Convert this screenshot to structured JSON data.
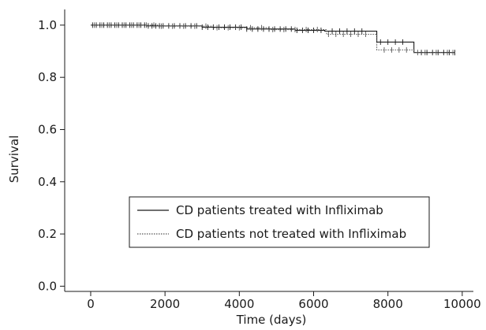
{
  "chart_data": {
    "type": "line",
    "title": "",
    "xlabel": "Time (days)",
    "ylabel": "Survival",
    "xlim": [
      -700,
      10300
    ],
    "ylim": [
      -0.02,
      1.06
    ],
    "x_ticks": [
      0,
      2000,
      4000,
      6000,
      8000,
      10000
    ],
    "y_ticks": [
      0.0,
      0.2,
      0.4,
      0.6,
      0.8,
      1.0
    ],
    "x_tick_labels": [
      "0",
      "2000",
      "4000",
      "6000",
      "8000",
      "10000"
    ],
    "y_tick_labels": [
      "0.0",
      "0.2",
      "0.4",
      "0.6",
      "0.8",
      "1.0"
    ],
    "grid": false,
    "legend_position": "bottom-right",
    "series": [
      {
        "name": "CD patients treated with Infliximab",
        "line_style": "solid",
        "color": "#1a1a1a",
        "step_x": [
          0,
          1500,
          3000,
          4200,
          5500,
          6300,
          7700,
          8700,
          9800
        ],
        "step_y": [
          1.0,
          0.997,
          0.992,
          0.985,
          0.98,
          0.977,
          0.935,
          0.895,
          0.895
        ],
        "censor_x": [
          50,
          150,
          250,
          350,
          450,
          550,
          650,
          750,
          850,
          950,
          1050,
          1150,
          1250,
          1350,
          1450,
          1550,
          1650,
          1750,
          1850,
          1950,
          2100,
          2250,
          2400,
          2550,
          2700,
          2850,
          3000,
          3150,
          3300,
          3450,
          3600,
          3750,
          3900,
          4050,
          4200,
          4350,
          4500,
          4650,
          4800,
          4950,
          5100,
          5250,
          5400,
          5550,
          5700,
          5850,
          6000,
          6200,
          6500,
          6700,
          6900,
          7100,
          7300,
          7800,
          8000,
          8200,
          8400,
          8900,
          9050,
          9200,
          9350,
          9500,
          9650,
          9800
        ]
      },
      {
        "name": "CD patients not treated with Infliximab",
        "line_style": "dotted",
        "color": "#555555",
        "step_x": [
          0,
          1800,
          3300,
          4800,
          6350,
          7700,
          8700,
          9800
        ],
        "step_y": [
          1.0,
          0.996,
          0.99,
          0.983,
          0.965,
          0.905,
          0.895,
          0.895
        ],
        "censor_x": [
          100,
          300,
          500,
          700,
          900,
          1100,
          1300,
          1500,
          1700,
          1900,
          2200,
          2500,
          2800,
          3100,
          3400,
          3700,
          4000,
          4300,
          4600,
          4900,
          5200,
          5500,
          5800,
          6100,
          6400,
          6600,
          6800,
          7000,
          7200,
          7400,
          7900,
          8100,
          8300,
          8500,
          8800,
          9000,
          9300,
          9600,
          9750
        ]
      }
    ],
    "legend": {
      "entries": [
        "CD patients treated with Infliximab",
        "CD patients not treated with Infliximab"
      ]
    }
  }
}
